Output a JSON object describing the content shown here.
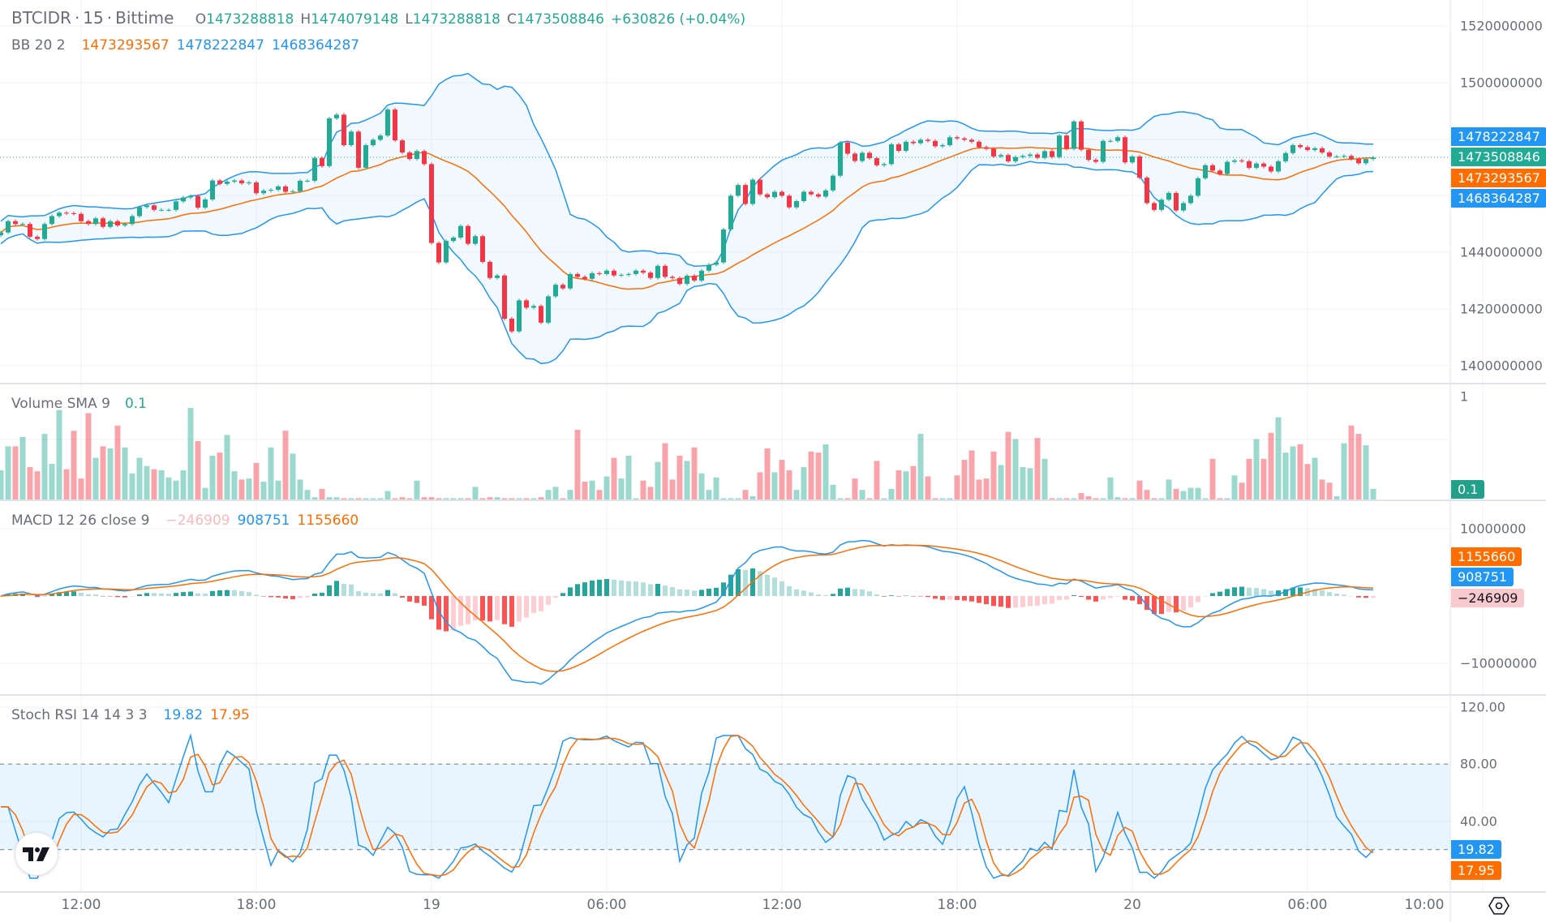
{
  "header": {
    "symbol": "BTCIDR",
    "interval": "15",
    "exchange": "Bittime",
    "sep": "·",
    "open_label": "O",
    "open": "1473288818",
    "high_label": "H",
    "high": "1474079148",
    "low_label": "L",
    "low": "1473288818",
    "close_label": "C",
    "close": "1473508846",
    "change": "+630826 (+0.04%)"
  },
  "bb_legend": {
    "title": "BB 20 2",
    "basis": "1473293567",
    "upper": "1478222847",
    "lower": "1468364287"
  },
  "volume_legend": {
    "title": "Volume SMA 9",
    "value": "0.1"
  },
  "macd_legend": {
    "title": "MACD 12 26 close 9",
    "histogram": "−246909",
    "macd": "908751",
    "signal": "1155660"
  },
  "stoch_legend": {
    "title": "Stoch RSI 14 14 3 3",
    "k": "19.82",
    "d": "17.95"
  },
  "price_axis": {
    "ticks": [
      "1520000000",
      "1500000000",
      "1440000000",
      "1420000000",
      "1400000000"
    ]
  },
  "price_tags": {
    "upper": "1478222847",
    "last": "1473508846",
    "basis": "1473293567",
    "lower": "1468364287"
  },
  "volume_axis": {
    "ticks": [
      "1"
    ],
    "tag": "0.1"
  },
  "macd_axis": {
    "ticks": [
      "10000000",
      "−10000000"
    ],
    "signal_tag": "1155660",
    "macd_tag": "908751",
    "hist_tag": "−246909"
  },
  "stoch_axis": {
    "ticks": [
      "120.00",
      "80.00",
      "40.00"
    ],
    "k_tag": "19.82",
    "d_tag": "17.95"
  },
  "time_axis": {
    "labels": [
      "12:00",
      "18:00",
      "19",
      "06:00",
      "12:00",
      "18:00",
      "20",
      "06:00",
      "10:00"
    ]
  },
  "colors": {
    "up": "#22ab94",
    "down": "#f23645",
    "bb_band": "#2196f3",
    "bb_basis": "#ff6d00",
    "macd": "#2196f3",
    "signal": "#ff6d00",
    "stoch_k": "#2196f3",
    "stoch_d": "#ff6d00",
    "hist_up_strong": "#26a69a",
    "hist_up_weak": "#b2dfdb",
    "hist_down_strong": "#ff5252",
    "hist_down_weak": "#ffcdd2"
  },
  "chart_data": {
    "type": "candlestick",
    "symbol": "BTCIDR",
    "interval_minutes": 15,
    "price_ylim": [
      1395000000,
      1525000000
    ],
    "stoch_bands": [
      20,
      80
    ],
    "stoch_ylim": [
      0,
      120
    ],
    "grid": true,
    "close": [
      1447000000,
      1451000000,
      1450000000,
      1450000000,
      1445500000,
      1444700000,
      1450000000,
      1452800000,
      1454000000,
      1453800000,
      1453600000,
      1451000000,
      1450000000,
      1452000000,
      1449000000,
      1451000000,
      1449500000,
      1450000000,
      1452800000,
      1456000000,
      1456600000,
      1455000000,
      1455000000,
      1455000000,
      1458000000,
      1459400000,
      1459900000,
      1455800000,
      1458700000,
      1465400000,
      1464200000,
      1465000000,
      1465400000,
      1464400000,
      1464700000,
      1460900000,
      1461800000,
      1462100000,
      1463300000,
      1461400000,
      1461600000,
      1465300000,
      1465300000,
      1473400000,
      1470500000,
      1487400000,
      1488700000,
      1477900000,
      1482700000,
      1469900000,
      1477900000,
      1479800000,
      1481300000,
      1490500000,
      1479600000,
      1475300000,
      1473000000,
      1475800000,
      1471200000,
      1443300000,
      1436400000,
      1444000000,
      1445200000,
      1449300000,
      1443000000,
      1445700000,
      1436600000,
      1430900000,
      1431800000,
      1416500000,
      1412000000,
      1423000000,
      1420400000,
      1421000000,
      1415100000,
      1424400000,
      1428500000,
      1427200000,
      1432300000,
      1431300000,
      1430600000,
      1432600000,
      1432300000,
      1433500000,
      1431800000,
      1432000000,
      1432300000,
      1433500000,
      1432800000,
      1430900000,
      1435200000,
      1431300000,
      1430900000,
      1428800000,
      1431700000,
      1430000000,
      1433500000,
      1435600000,
      1436400000,
      1448100000,
      1460000000,
      1463800000,
      1457100000,
      1465700000,
      1460500000,
      1459500000,
      1461400000,
      1460000000,
      1455900000,
      1458100000,
      1461400000,
      1460500000,
      1459700000,
      1461900000,
      1467100000,
      1478800000,
      1474900000,
      1472300000,
      1475200000,
      1473300000,
      1470800000,
      1471200000,
      1478200000,
      1475900000,
      1479100000,
      1478600000,
      1479800000,
      1479400000,
      1477500000,
      1477900000,
      1480700000,
      1480300000,
      1479800000,
      1479100000,
      1477200000,
      1476600000,
      1473900000,
      1474400000,
      1472200000,
      1473700000,
      1474100000,
      1474600000,
      1473400000,
      1475800000,
      1473700000,
      1481300000,
      1476600000,
      1486300000,
      1476300000,
      1472700000,
      1472000000,
      1479400000,
      1479400000,
      1480700000,
      1471800000,
      1473900000,
      1466400000,
      1457400000,
      1455000000,
      1458600000,
      1461000000,
      1454800000,
      1457400000,
      1460000000,
      1466200000,
      1470800000,
      1468900000,
      1467700000,
      1472000000,
      1472500000,
      1472200000,
      1469900000,
      1471400000,
      1470300000,
      1468600000,
      1472200000,
      1475100000,
      1477900000,
      1477200000,
      1476200000,
      1476800000,
      1475300000,
      1473900000,
      1473900000,
      1474100000,
      1473000000,
      1471500000,
      1473000000,
      1473508846
    ],
    "volume": [
      0.29,
      0.52,
      0.52,
      0.61,
      0.32,
      0.28,
      0.64,
      0.35,
      0.87,
      0.3,
      0.67,
      0.21,
      0.84,
      0.41,
      0.52,
      0.5,
      0.72,
      0.51,
      0.26,
      0.41,
      0.33,
      0.3,
      0.29,
      0.22,
      0.19,
      0.29,
      0.89,
      0.57,
      0.12,
      0.43,
      0.46,
      0.63,
      0.28,
      0.2,
      0.21,
      0.36,
      0.18,
      0.51,
      0.19,
      0.67,
      0.45,
      0.2,
      0.1,
      0.03,
      0.11,
      0.03,
      0.03,
      0.02,
      0.02,
      0.02,
      0.02,
      0.02,
      0.02,
      0.09,
      0.02,
      0.03,
      0.02,
      0.19,
      0.03,
      0.03,
      0.02,
      0.02,
      0.02,
      0.02,
      0.02,
      0.13,
      0.02,
      0.03,
      0.03,
      0.02,
      0.02,
      0.02,
      0.02,
      0.02,
      0.03,
      0.1,
      0.13,
      0.02,
      0.1,
      0.68,
      0.18,
      0.19,
      0.1,
      0.23,
      0.41,
      0.21,
      0.43,
      0.02,
      0.19,
      0.13,
      0.37,
      0.55,
      0.2,
      0.43,
      0.38,
      0.51,
      0.26,
      0.1,
      0.22,
      0.02,
      0.02,
      0.02,
      0.1,
      0.04,
      0.27,
      0.5,
      0.27,
      0.39,
      0.29,
      0.1,
      0.32,
      0.47,
      0.46,
      0.54,
      0.15,
      0.02,
      0.02,
      0.21,
      0.1,
      0.02,
      0.38,
      0.02,
      0.11,
      0.29,
      0.28,
      0.33,
      0.64,
      0.23,
      0.02,
      0.02,
      0.02,
      0.24,
      0.39,
      0.48,
      0.2,
      0.21,
      0.47,
      0.34,
      0.66,
      0.59,
      0.32,
      0.31,
      0.6,
      0.4,
      0.02,
      0.02,
      0.02,
      0.02,
      0.07,
      0.04,
      0.02,
      0.02,
      0.22,
      0.03,
      0.02,
      0.02,
      0.19,
      0.1,
      0.02,
      0.02,
      0.2,
      0.11,
      0.09,
      0.12,
      0.12,
      0.02,
      0.4,
      0.02,
      0.02,
      0.24,
      0.17,
      0.4,
      0.59,
      0.4,
      0.65,
      0.8,
      0.46,
      0.52,
      0.54,
      0.35,
      0.41,
      0.2,
      0.17,
      0.04,
      0.55,
      0.72,
      0.64,
      0.53,
      0.11
    ],
    "indicators": {
      "bollinger": {
        "length": 20,
        "mult": 2
      },
      "volume_sma": 9,
      "macd": {
        "fast": 12,
        "slow": 26,
        "source": "close",
        "signal": 9
      },
      "stoch_rsi": {
        "k": 3,
        "d": 3,
        "rsi_length": 14,
        "stoch_length": 14
      }
    }
  }
}
